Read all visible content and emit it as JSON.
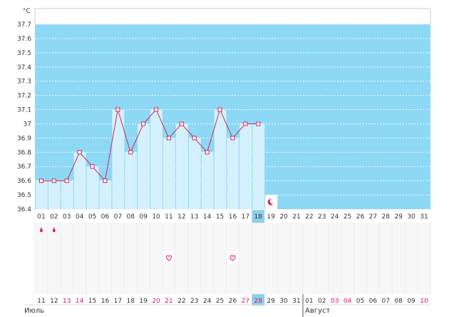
{
  "chart_data": {
    "type": "bar",
    "unit": "°C",
    "ylim": [
      36.4,
      37.7
    ],
    "y_ticks": [
      36.4,
      36.5,
      36.6,
      36.7,
      36.8,
      36.9,
      37,
      37.1,
      37.2,
      37.3,
      37.4,
      37.5,
      37.6,
      37.7
    ],
    "cycle_days": [
      "01",
      "02",
      "03",
      "04",
      "05",
      "06",
      "07",
      "08",
      "09",
      "10",
      "11",
      "12",
      "13",
      "14",
      "15",
      "16",
      "17",
      "18",
      "19",
      "20",
      "21",
      "22",
      "23",
      "24",
      "25",
      "26",
      "27",
      "28",
      "29",
      "30",
      "31"
    ],
    "values": [
      36.6,
      36.6,
      36.6,
      36.8,
      36.7,
      36.6,
      37.1,
      36.8,
      37.0,
      37.1,
      36.9,
      37.0,
      36.9,
      36.8,
      37.1,
      36.9,
      37.0,
      37.0
    ],
    "current_cycle_day": "18",
    "ovulation_marker_day": "19",
    "period_marker_days": [
      "01",
      "02"
    ],
    "heart_marker_days": [
      "11",
      "16"
    ],
    "calendar_dates": [
      "11",
      "12",
      "13",
      "14",
      "15",
      "16",
      "17",
      "18",
      "19",
      "20",
      "21",
      "22",
      "23",
      "24",
      "25",
      "26",
      "27",
      "28",
      "29",
      "30",
      "31",
      "01",
      "02",
      "03",
      "04",
      "05",
      "06",
      "07",
      "08",
      "09",
      "10"
    ],
    "weekend_dates_index": [
      2,
      3,
      9,
      10,
      16,
      17,
      23,
      24,
      30
    ],
    "current_date_index": 17,
    "months": [
      "Июль",
      "Август"
    ],
    "colors": {
      "plot_bg": "#8dd8f5",
      "bar_fill": "#d5f0fd",
      "line": "#cc2a55",
      "highlight": "#8dd0ea",
      "weekend": "#e8174f"
    }
  }
}
